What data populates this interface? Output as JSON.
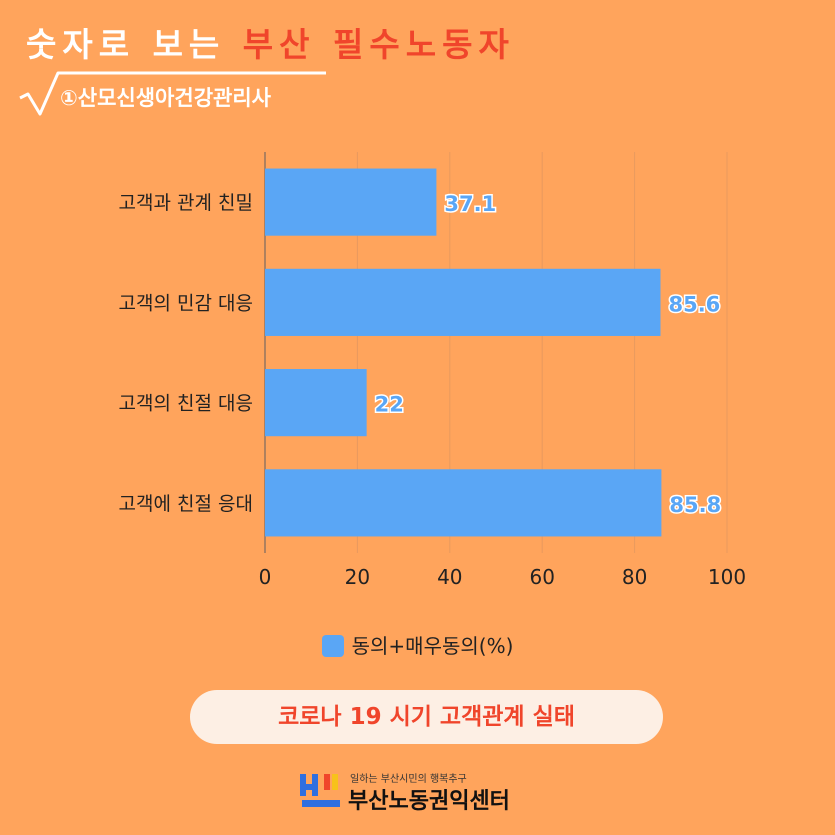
{
  "header": {
    "title_white": "숫자로 보는",
    "title_red": "부산 필수노동자",
    "subtitle": "①산모신생아건강관리사"
  },
  "chart_data": {
    "type": "bar",
    "orientation": "horizontal",
    "categories": [
      "고객과 관계 친밀",
      "고객의 민감 대응",
      "고객의 친절 대응",
      "고객에 친절 응대"
    ],
    "series": [
      {
        "name": "동의+매우동의(%)",
        "values": [
          37.1,
          85.6,
          22,
          85.8
        ],
        "color": "#5AA6F5"
      }
    ],
    "data_labels": [
      "37.1",
      "85.6",
      "22",
      "85.8"
    ],
    "xlim": [
      0,
      100
    ],
    "xticks": [
      0,
      20,
      40,
      60,
      80,
      100
    ],
    "grid": true,
    "legend_position": "bottom"
  },
  "legend": {
    "label": "동의+매우동의(%)"
  },
  "caption": "코로나 19 시기 고객관계 실태",
  "footer": {
    "tagline": "일하는 부산시민의 행복추구",
    "org_name": "부산노동권익센터"
  },
  "colors": {
    "background": "#FFA45C",
    "accent_red": "#F0452B",
    "bar": "#5AA6F5"
  }
}
